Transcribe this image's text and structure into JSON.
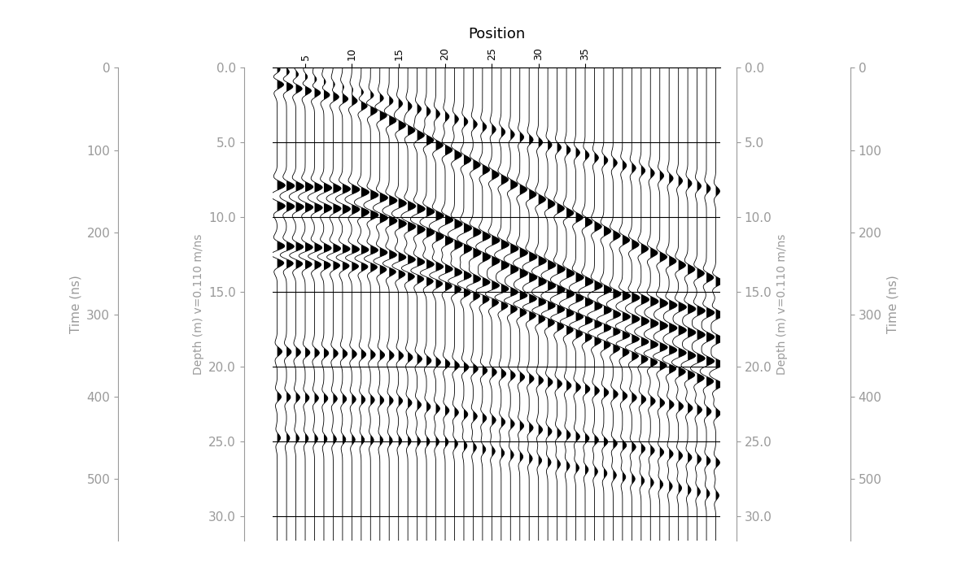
{
  "chart_data": {
    "type": "wiggle",
    "x_label": "Position",
    "y_label": "Time (ns)",
    "y2_label": "Depth (m) v=0.110 m/ns",
    "xlim": [
      1.5,
      49.5
    ],
    "xticks": [
      5,
      10,
      15,
      20,
      25,
      30,
      35
    ],
    "ylim": [
      0,
      575
    ],
    "yticks": [
      0,
      100,
      200,
      300,
      400,
      500
    ],
    "y2lim": [
      0,
      31.625
    ],
    "y2ticks": [
      {
        "value": 0,
        "label": "0.0"
      },
      {
        "value": 5,
        "label": "5.0"
      },
      {
        "value": 10,
        "label": "10.0"
      },
      {
        "value": 15,
        "label": "15.0"
      },
      {
        "value": 20,
        "label": "20.0"
      },
      {
        "value": 25,
        "label": "25.0"
      },
      {
        "value": 30,
        "label": "30.0"
      }
    ],
    "grid": true,
    "color": "#000000",
    "traces": [
      2,
      3,
      4,
      5,
      6,
      7,
      8,
      9,
      10,
      11,
      12,
      13,
      14,
      15,
      16,
      17,
      18,
      19,
      20,
      21,
      22,
      23,
      24,
      25,
      26,
      27,
      28,
      29,
      30,
      31,
      32,
      33,
      34,
      35,
      36,
      37,
      38,
      39,
      40,
      41,
      42,
      43,
      44,
      45,
      46,
      47,
      48,
      49
    ],
    "events": [
      {
        "x": [
          2,
          49
        ],
        "values": [
          3,
          150
        ],
        "amplitude": 0.5
      },
      {
        "x": [
          2,
          10,
          20,
          30,
          40,
          49
        ],
        "values": [
          20,
          40,
          100,
          160,
          215,
          260
        ],
        "amplitude": 0.9
      },
      {
        "x": [
          2,
          10,
          18,
          28,
          38,
          49
        ],
        "values": [
          143,
          148,
          175,
          225,
          275,
          300
        ],
        "amplitude": 1.0
      },
      {
        "x": [
          2,
          10,
          18,
          28,
          38,
          49
        ],
        "values": [
          168,
          172,
          200,
          250,
          300,
          330
        ],
        "amplitude": 1.0
      },
      {
        "x": [
          2,
          12,
          20,
          30,
          40,
          49
        ],
        "values": [
          217,
          222,
          245,
          285,
          330,
          360
        ],
        "amplitude": 1.0
      },
      {
        "x": [
          2,
          12,
          20,
          30,
          40,
          49
        ],
        "values": [
          237,
          242,
          265,
          305,
          350,
          385
        ],
        "amplitude": 0.9
      },
      {
        "x": [
          2,
          15,
          30,
          49
        ],
        "values": [
          345,
          350,
          380,
          420
        ],
        "amplitude": 0.6
      },
      {
        "x": [
          2,
          15,
          30,
          49
        ],
        "values": [
          400,
          405,
          440,
          480
        ],
        "amplitude": 0.5
      },
      {
        "x": [
          2,
          20,
          49
        ],
        "values": [
          450,
          455,
          520
        ],
        "amplitude": 0.4
      }
    ]
  }
}
